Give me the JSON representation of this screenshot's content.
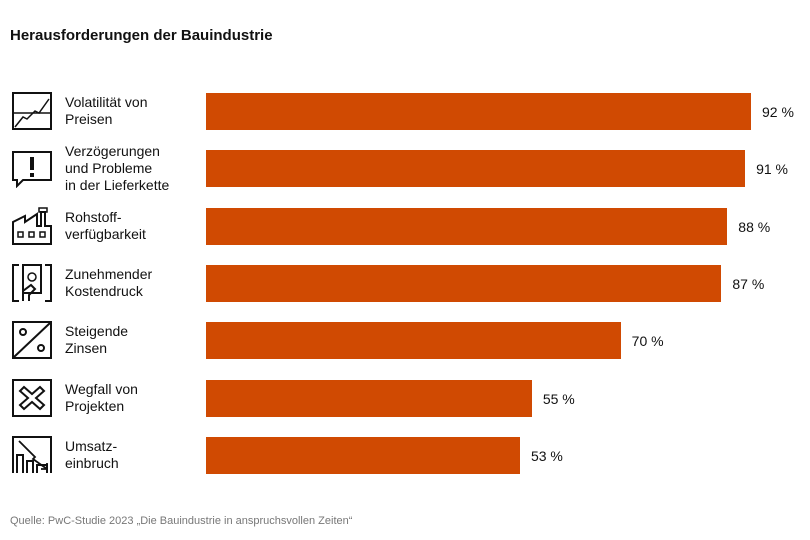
{
  "chart_data": {
    "type": "bar",
    "orientation": "horizontal",
    "title": "Herausforderungen der Bauindustrie",
    "categories": [
      "Volatilität von\nPreisen",
      "Verzögerungen\nund Probleme\nin der Lieferkette",
      "Rohstoff-\nverfügbarkeit",
      "Zunehmender\nKostendruck",
      "Steigende\nZinsen",
      "Wegfall von\nProjekten",
      "Umsatz-\neinbruch"
    ],
    "values": [
      92,
      91,
      88,
      87,
      70,
      55,
      53
    ],
    "value_labels": [
      "92 %",
      "91 %",
      "88 %",
      "87 %",
      "70 %",
      "55 %",
      "53 %"
    ],
    "icons": [
      "price-chart-icon",
      "warning-speech-bubble-icon",
      "factory-icon",
      "money-hand-icon",
      "percent-icon",
      "cross-icon",
      "revenue-drop-icon"
    ],
    "bar_color": "#D04A02",
    "xlim": [
      0,
      100
    ],
    "grid": false,
    "source": "Quelle: PwC-Studie 2023 „Die Bauindustrie in anspruchsvollen Zeiten“"
  }
}
